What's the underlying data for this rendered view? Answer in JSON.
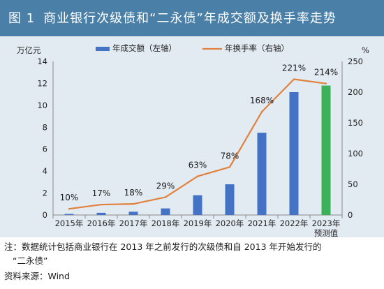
{
  "figure": {
    "number": "图 1",
    "title": "商业银行次级债和“二永债”年成交额及换手率走势"
  },
  "notes": {
    "line1": "注：数据统计包括商业银行在 2013 年之前发行的次级债和自 2013 年开始发行的",
    "line2": "“二永债”",
    "source": "资料来源：Wind"
  },
  "chart_data": {
    "type": "bar",
    "categories": [
      "2015年",
      "2016年",
      "2017年",
      "2018年",
      "2019年",
      "2020年",
      "2021年",
      "2022年",
      [
        "2023年",
        "预测值"
      ]
    ],
    "series": [
      {
        "name": "年成交额（左轴）",
        "type": "bar",
        "axis": "left",
        "values": [
          0.1,
          0.2,
          0.3,
          0.6,
          1.8,
          2.8,
          7.5,
          11.2,
          11.8
        ],
        "color": "#4472c4",
        "highlight": {
          "index": 8,
          "color": "#3db05a"
        }
      },
      {
        "name": "年换手率（右轴）",
        "type": "line",
        "axis": "right",
        "values": [
          10,
          17,
          18,
          29,
          63,
          78,
          168,
          221,
          214
        ],
        "labels": [
          "10%",
          "17%",
          "18%",
          "29%",
          "63%",
          "78%",
          "168%",
          "221%",
          "214%"
        ],
        "color": "#e0823e"
      }
    ],
    "left_axis": {
      "unit": "万亿元",
      "ylim": [
        0,
        14
      ],
      "ticks": [
        0,
        2,
        4,
        6,
        8,
        10,
        12,
        14
      ]
    },
    "right_axis": {
      "unit": "%",
      "ylim": [
        0,
        250
      ],
      "ticks": [
        0,
        50,
        100,
        150,
        200,
        250
      ]
    },
    "grid": false,
    "legend": "top-center"
  }
}
